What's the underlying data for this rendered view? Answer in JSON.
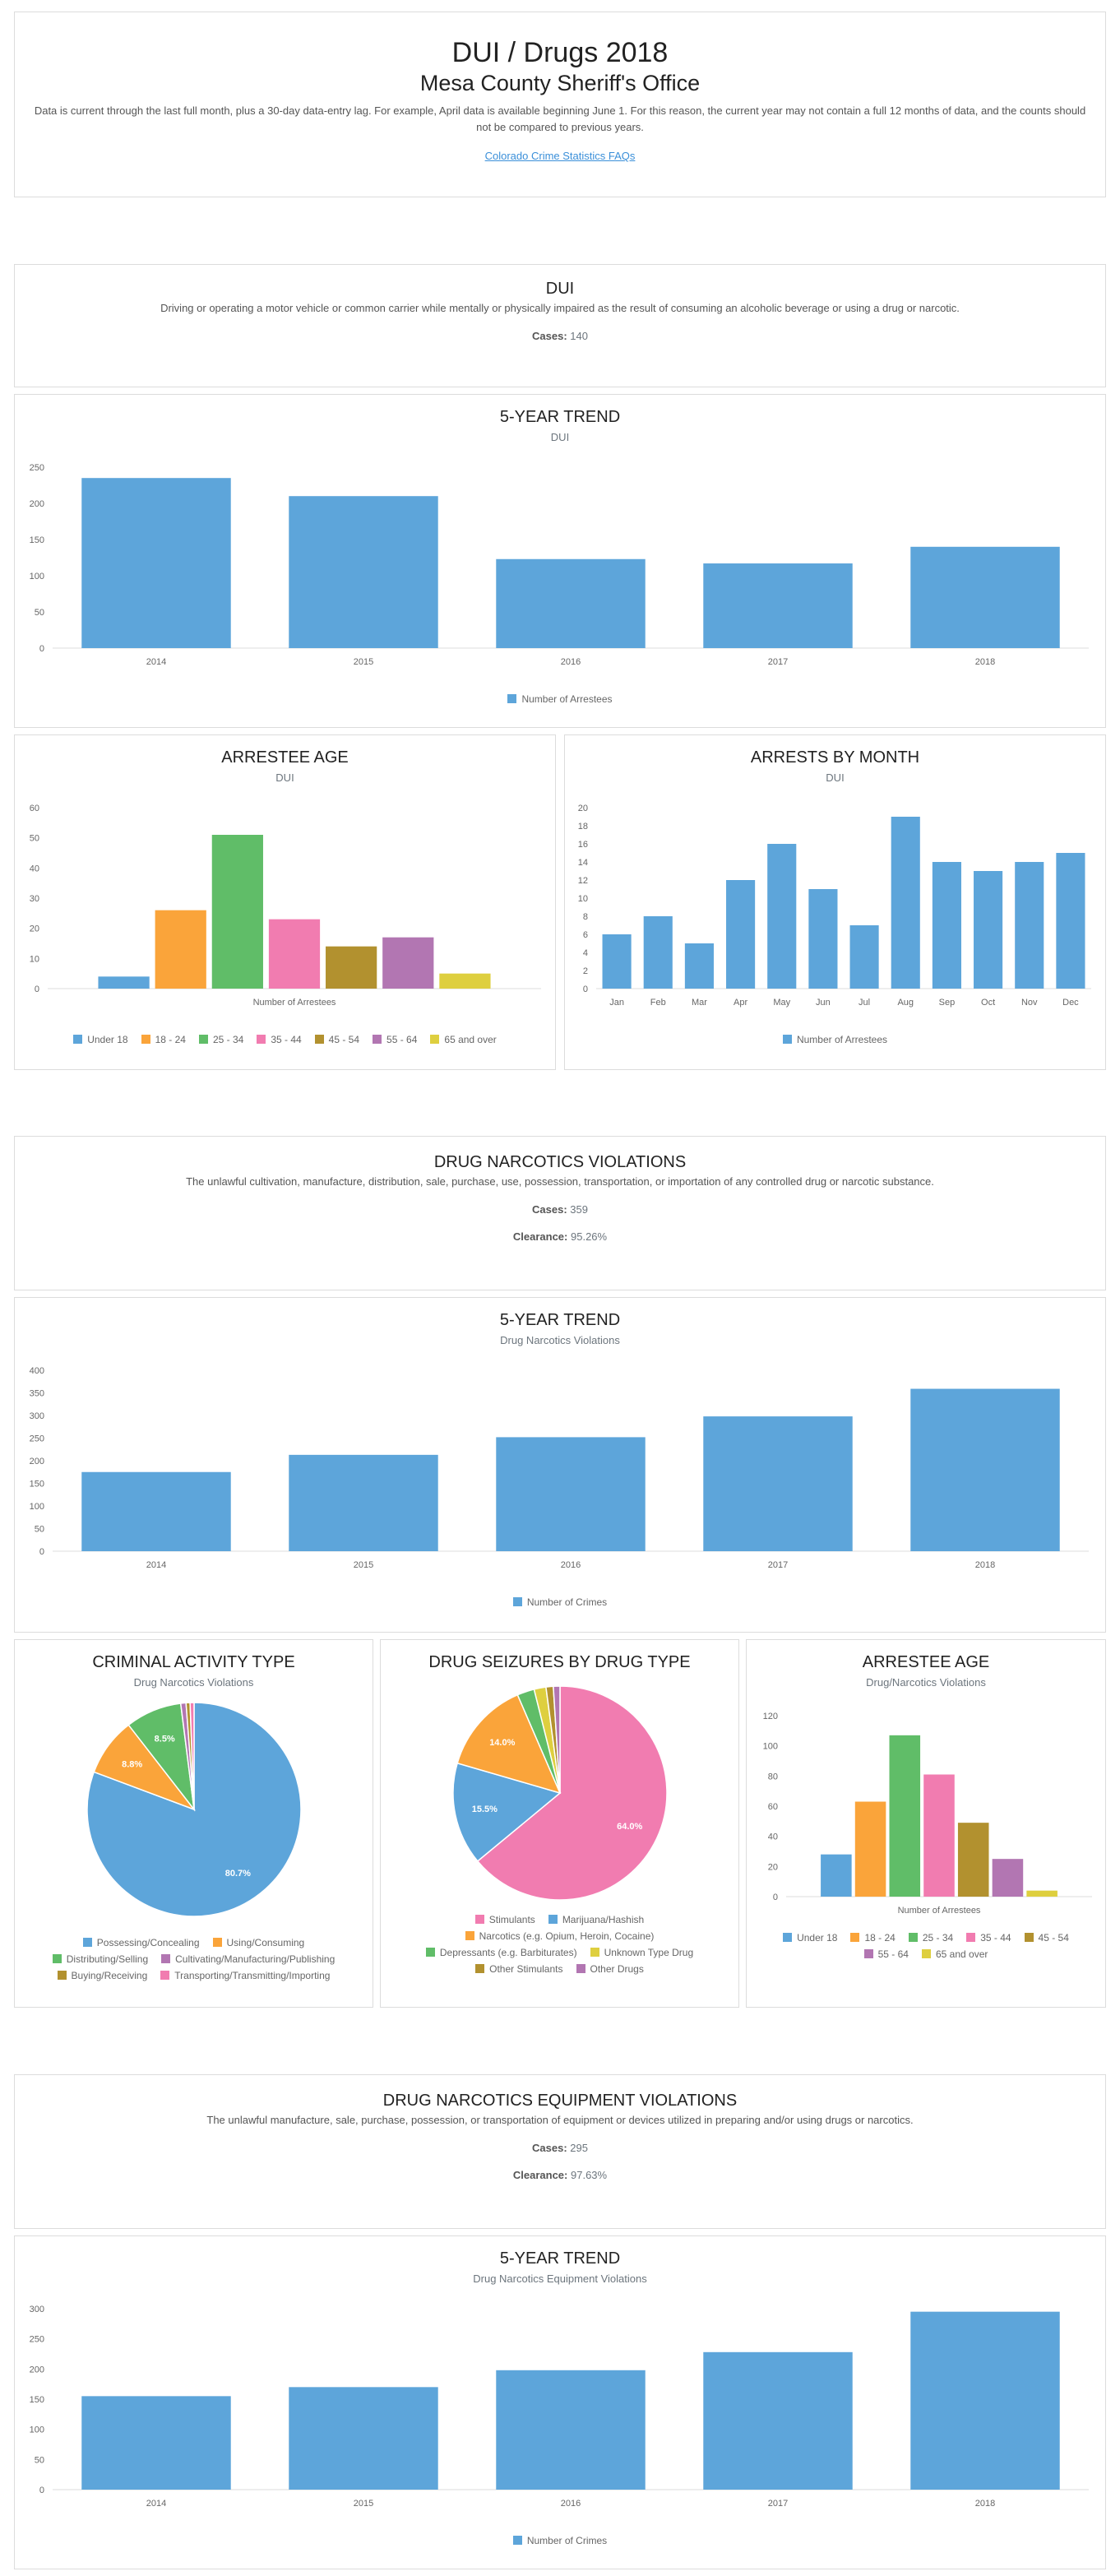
{
  "header": {
    "title": "DUI / Drugs 2018",
    "agency": "Mesa County Sheriff's Office",
    "note": "Data is current through the last full month, plus a 30-day data-entry lag. For example, April data is available beginning June 1. For this reason, the current year may not contain a full 12 months of data, and the counts should not be compared to previous years.",
    "faq_link": "Colorado Crime Statistics FAQs"
  },
  "colors": {
    "blue": "#5da5da",
    "orange": "#faa43a",
    "green": "#60bd68",
    "pink": "#f17cb0",
    "olive": "#b2912f",
    "purple": "#b276b2",
    "yellow": "#decf3f",
    "red": "#f15854"
  },
  "dui": {
    "title": "DUI",
    "description": "Driving or operating a motor vehicle or common carrier while mentally or physically impaired as the result of consuming an alcoholic beverage or using a drug or narcotic.",
    "cases_label": "Cases:",
    "cases": "140"
  },
  "drug": {
    "title": "DRUG NARCOTICS VIOLATIONS",
    "description": "The unlawful cultivation, manufacture, distribution, sale, purchase, use, possession, transportation, or importation of any controlled drug or narcotic substance.",
    "cases_label": "Cases:",
    "cases": "359",
    "clearance_label": "Clearance:",
    "clearance": "95.26%"
  },
  "equip": {
    "title": "DRUG NARCOTICS EQUIPMENT VIOLATIONS",
    "description": "The unlawful manufacture, sale, purchase, possession, or transportation of equipment or devices utilized in preparing and/or using drugs or narcotics.",
    "cases_label": "Cases:",
    "cases": "295",
    "clearance_label": "Clearance:",
    "clearance": "97.63%"
  },
  "chart_data": [
    {
      "id": "dui_trend",
      "type": "bar",
      "title": "5-YEAR TREND",
      "subtitle": "DUI",
      "categories": [
        "2014",
        "2015",
        "2016",
        "2017",
        "2018"
      ],
      "series": [
        {
          "name": "Number of Arrestees",
          "values": [
            235,
            210,
            123,
            117,
            140
          ],
          "color": "#5da5da"
        }
      ],
      "ylim": [
        0,
        250
      ],
      "yticks": [
        0,
        50,
        100,
        150,
        200,
        250
      ],
      "grid": false,
      "legend": "bottom"
    },
    {
      "id": "dui_age",
      "type": "bar",
      "title": "ARRESTEE AGE",
      "subtitle": "DUI",
      "xlabel": "Number of Arrestees",
      "series": [
        {
          "name": "Under 18",
          "values": [
            4
          ],
          "color": "#5da5da"
        },
        {
          "name": "18 - 24",
          "values": [
            26
          ],
          "color": "#faa43a"
        },
        {
          "name": "25 - 34",
          "values": [
            51
          ],
          "color": "#60bd68"
        },
        {
          "name": "35 - 44",
          "values": [
            23
          ],
          "color": "#f17cb0"
        },
        {
          "name": "45 - 54",
          "values": [
            14
          ],
          "color": "#b2912f"
        },
        {
          "name": "55 - 64",
          "values": [
            17
          ],
          "color": "#b276b2"
        },
        {
          "name": "65 and over",
          "values": [
            5
          ],
          "color": "#decf3f"
        }
      ],
      "ylim": [
        0,
        60
      ],
      "yticks": [
        0,
        10,
        20,
        30,
        40,
        50,
        60
      ],
      "grid": false,
      "legend": "bottom"
    },
    {
      "id": "dui_month",
      "type": "bar",
      "title": "ARRESTS BY MONTH",
      "subtitle": "DUI",
      "categories": [
        "Jan",
        "Feb",
        "Mar",
        "Apr",
        "May",
        "Jun",
        "Jul",
        "Aug",
        "Sep",
        "Oct",
        "Nov",
        "Dec"
      ],
      "series": [
        {
          "name": "Number of Arrestees",
          "values": [
            6,
            8,
            5,
            12,
            16,
            11,
            7,
            19,
            14,
            13,
            14,
            15
          ],
          "color": "#5da5da"
        }
      ],
      "ylim": [
        0,
        20
      ],
      "yticks": [
        0,
        2,
        4,
        6,
        8,
        10,
        12,
        14,
        16,
        18,
        20
      ],
      "grid": false,
      "legend": "bottom"
    },
    {
      "id": "drug_trend",
      "type": "bar",
      "title": "5-YEAR TREND",
      "subtitle": "Drug Narcotics Violations",
      "categories": [
        "2014",
        "2015",
        "2016",
        "2017",
        "2018"
      ],
      "series": [
        {
          "name": "Number of Crimes",
          "values": [
            175,
            213,
            252,
            298,
            359
          ],
          "color": "#5da5da"
        }
      ],
      "ylim": [
        0,
        400
      ],
      "yticks": [
        0,
        50,
        100,
        150,
        200,
        250,
        300,
        350,
        400
      ],
      "grid": false,
      "legend": "bottom"
    },
    {
      "id": "activity_pie",
      "type": "pie",
      "title": "CRIMINAL ACTIVITY TYPE",
      "subtitle": "Drug Narcotics Violations",
      "slices": [
        {
          "name": "Possessing/Concealing",
          "value": 80.7,
          "label": "80.7%",
          "color": "#5da5da"
        },
        {
          "name": "Using/Consuming",
          "value": 8.8,
          "label": "8.8%",
          "color": "#faa43a"
        },
        {
          "name": "Distributing/Selling",
          "value": 8.5,
          "label": "8.5%",
          "color": "#60bd68"
        },
        {
          "name": "Cultivating/Manufacturing/Publishing",
          "value": 0.8,
          "label": "",
          "color": "#b276b2"
        },
        {
          "name": "Buying/Receiving",
          "value": 0.6,
          "label": "",
          "color": "#b2912f"
        },
        {
          "name": "Transporting/Transmitting/Importing",
          "value": 0.6,
          "label": "",
          "color": "#f17cb0"
        }
      ],
      "legend": "bottom"
    },
    {
      "id": "seizure_pie",
      "type": "pie",
      "title": "DRUG SEIZURES BY DRUG TYPE",
      "subtitle": "",
      "slices": [
        {
          "name": "Stimulants",
          "value": 64.0,
          "label": "64.0%",
          "color": "#f17cb0"
        },
        {
          "name": "Marijuana/Hashish",
          "value": 15.5,
          "label": "15.5%",
          "color": "#5da5da"
        },
        {
          "name": "Narcotics (e.g. Opium, Heroin, Cocaine)",
          "value": 14.0,
          "label": "14.0%",
          "color": "#faa43a"
        },
        {
          "name": "Depressants (e.g. Barbiturates)",
          "value": 2.6,
          "label": "",
          "color": "#60bd68"
        },
        {
          "name": "Unknown Type Drug",
          "value": 1.8,
          "label": "",
          "color": "#decf3f"
        },
        {
          "name": "Other Stimulants",
          "value": 1.1,
          "label": "",
          "color": "#b2912f"
        },
        {
          "name": "Other Drugs",
          "value": 1.0,
          "label": "",
          "color": "#b276b2"
        }
      ],
      "legend": "bottom"
    },
    {
      "id": "drug_age",
      "type": "bar",
      "title": "ARRESTEE AGE",
      "subtitle": "Drug/Narcotics Violations",
      "xlabel": "Number of Arrestees",
      "series": [
        {
          "name": "Under 18",
          "values": [
            28
          ],
          "color": "#5da5da"
        },
        {
          "name": "18 - 24",
          "values": [
            63
          ],
          "color": "#faa43a"
        },
        {
          "name": "25 - 34",
          "values": [
            107
          ],
          "color": "#60bd68"
        },
        {
          "name": "35 - 44",
          "values": [
            81
          ],
          "color": "#f17cb0"
        },
        {
          "name": "45 - 54",
          "values": [
            49
          ],
          "color": "#b2912f"
        },
        {
          "name": "55 - 64",
          "values": [
            25
          ],
          "color": "#b276b2"
        },
        {
          "name": "65 and over",
          "values": [
            4
          ],
          "color": "#decf3f"
        }
      ],
      "ylim": [
        0,
        120
      ],
      "yticks": [
        0,
        20,
        40,
        60,
        80,
        100,
        120
      ],
      "grid": false,
      "legend": "bottom"
    },
    {
      "id": "equip_trend",
      "type": "bar",
      "title": "5-YEAR TREND",
      "subtitle": "Drug Narcotics Equipment Violations",
      "categories": [
        "2014",
        "2015",
        "2016",
        "2017",
        "2018"
      ],
      "series": [
        {
          "name": "Number of Crimes",
          "values": [
            155,
            170,
            198,
            228,
            295
          ],
          "color": "#5da5da"
        }
      ],
      "ylim": [
        0,
        300
      ],
      "yticks": [
        0,
        50,
        100,
        150,
        200,
        250,
        300
      ],
      "grid": false,
      "legend": "bottom"
    }
  ]
}
